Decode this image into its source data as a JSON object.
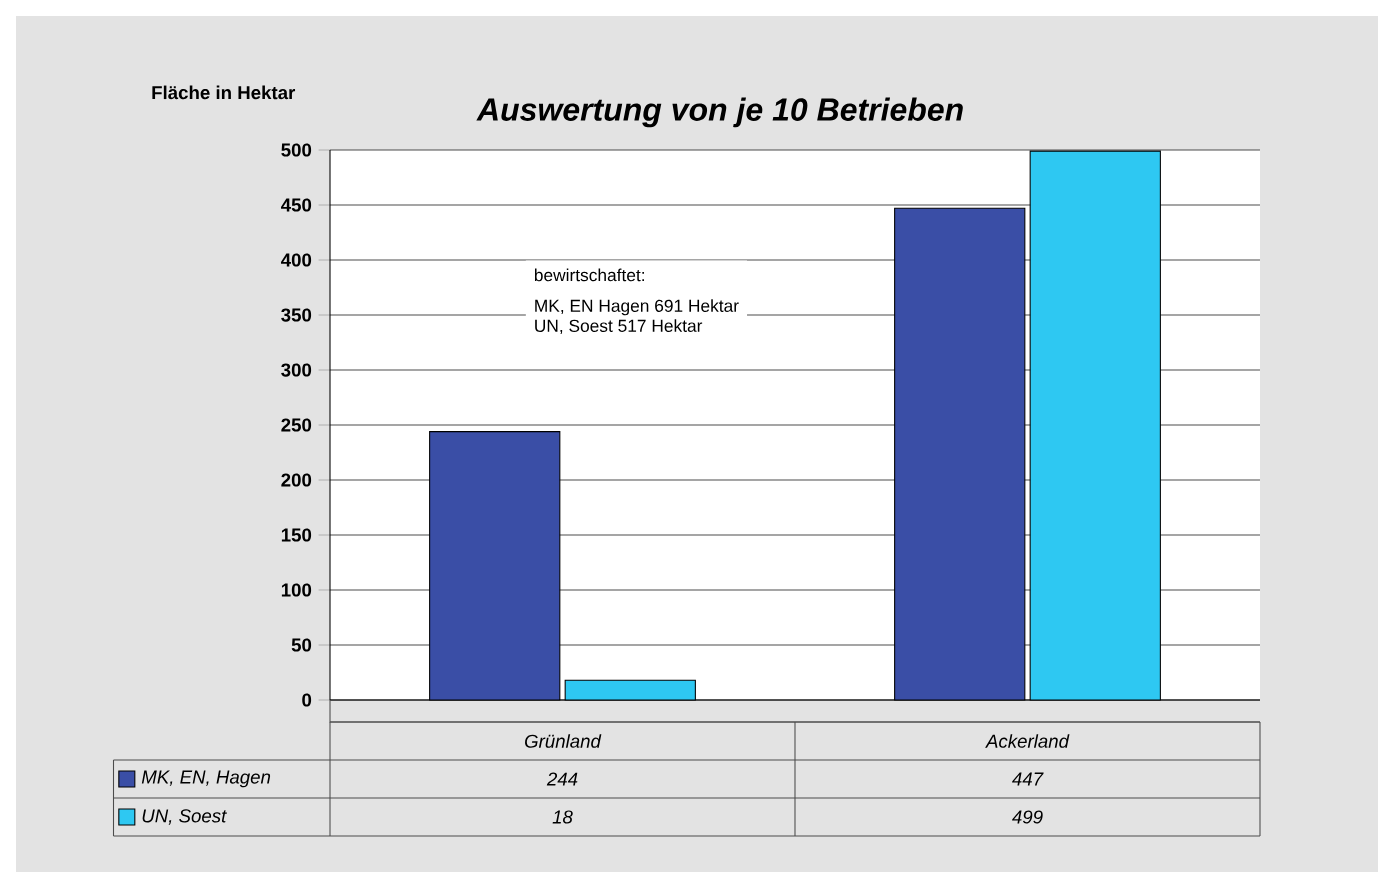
{
  "chart_data": {
    "type": "bar",
    "title": "Auswertung von je 10 Betrieben",
    "ylabel": "Fläche in Hektar",
    "categories": [
      "Grünland",
      "Ackerland"
    ],
    "series": [
      {
        "name": "MK, EN, Hagen",
        "color": "#3a4ea6",
        "values": [
          244,
          447
        ]
      },
      {
        "name": "UN, Soest",
        "color": "#2ec8f2",
        "values": [
          18,
          499
        ]
      }
    ],
    "ylim": [
      0,
      500
    ],
    "yticks": [
      0,
      50,
      100,
      150,
      200,
      250,
      300,
      350,
      400,
      450,
      500
    ],
    "grid": "y",
    "legend": "bottom",
    "data_labels": true,
    "annotations": [
      "bewirtschaftet:",
      "MK, EN Hagen 691 Hektar",
      "UN, Soest 517 Hektar"
    ]
  }
}
